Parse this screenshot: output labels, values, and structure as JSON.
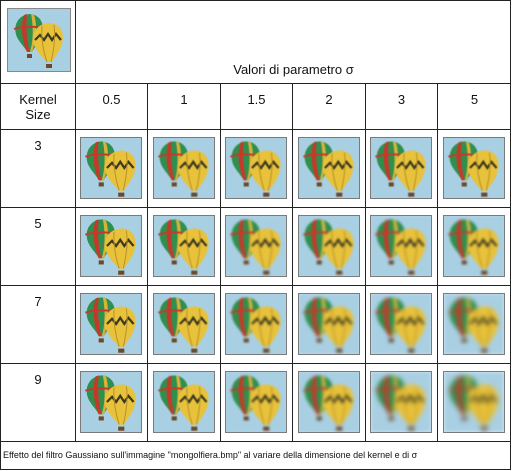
{
  "header": {
    "sigma_title": "Valori di parametro σ",
    "kernel_header": "Kernel\nSize",
    "sigma_values": [
      "0.5",
      "1",
      "1.5",
      "2",
      "3",
      "5"
    ]
  },
  "kernel_sizes": [
    "3",
    "5",
    "7",
    "9"
  ],
  "caption": "Effetto del filtro Gaussiano sull'immagine \"mongolfiera.bmp\" al variare della dimensione del kernel e di  σ",
  "image": {
    "sky_color": "#a9cfe3",
    "green_balloon": "#2f8f4e",
    "red_stripe": "#c43a2a",
    "yellow_balloon": "#e8c23a",
    "pattern_color": "#3c3a20"
  },
  "blur_levels": [
    [
      0.2,
      0.4,
      0.6,
      0.6,
      0.6,
      0.6
    ],
    [
      0.2,
      0.5,
      0.9,
      1.1,
      1.2,
      1.3
    ],
    [
      0.2,
      0.5,
      1.0,
      1.4,
      1.8,
      2.0
    ],
    [
      0.2,
      0.5,
      1.0,
      1.5,
      2.2,
      2.6
    ]
  ]
}
